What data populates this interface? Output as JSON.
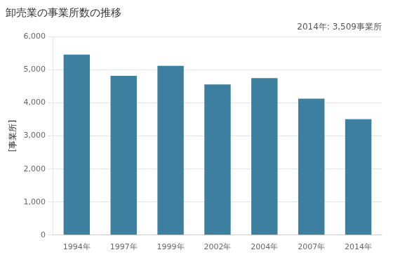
{
  "chart_data": {
    "type": "bar",
    "title": "卸売業の事業所数の推移",
    "ylabel": "[事業所]",
    "annotation": "2014年: 3,509事業所",
    "categories": [
      "1994年",
      "1997年",
      "1999年",
      "2002年",
      "2004年",
      "2007年",
      "2014年"
    ],
    "values": [
      5460,
      4820,
      5120,
      4560,
      4750,
      4130,
      3509
    ],
    "color": "#3d7f9f",
    "ylim": [
      0,
      6000
    ],
    "yticks": [
      0,
      {
        "value": 1000,
        "label": "1,000"
      },
      {
        "value": 2000,
        "label": "2,000"
      },
      {
        "value": 3000,
        "label": "3,000"
      },
      {
        "value": 4000,
        "label": "4,000"
      },
      {
        "value": 5000,
        "label": "5,000"
      },
      {
        "value": 6000,
        "label": "6,000"
      }
    ],
    "grid": true
  }
}
